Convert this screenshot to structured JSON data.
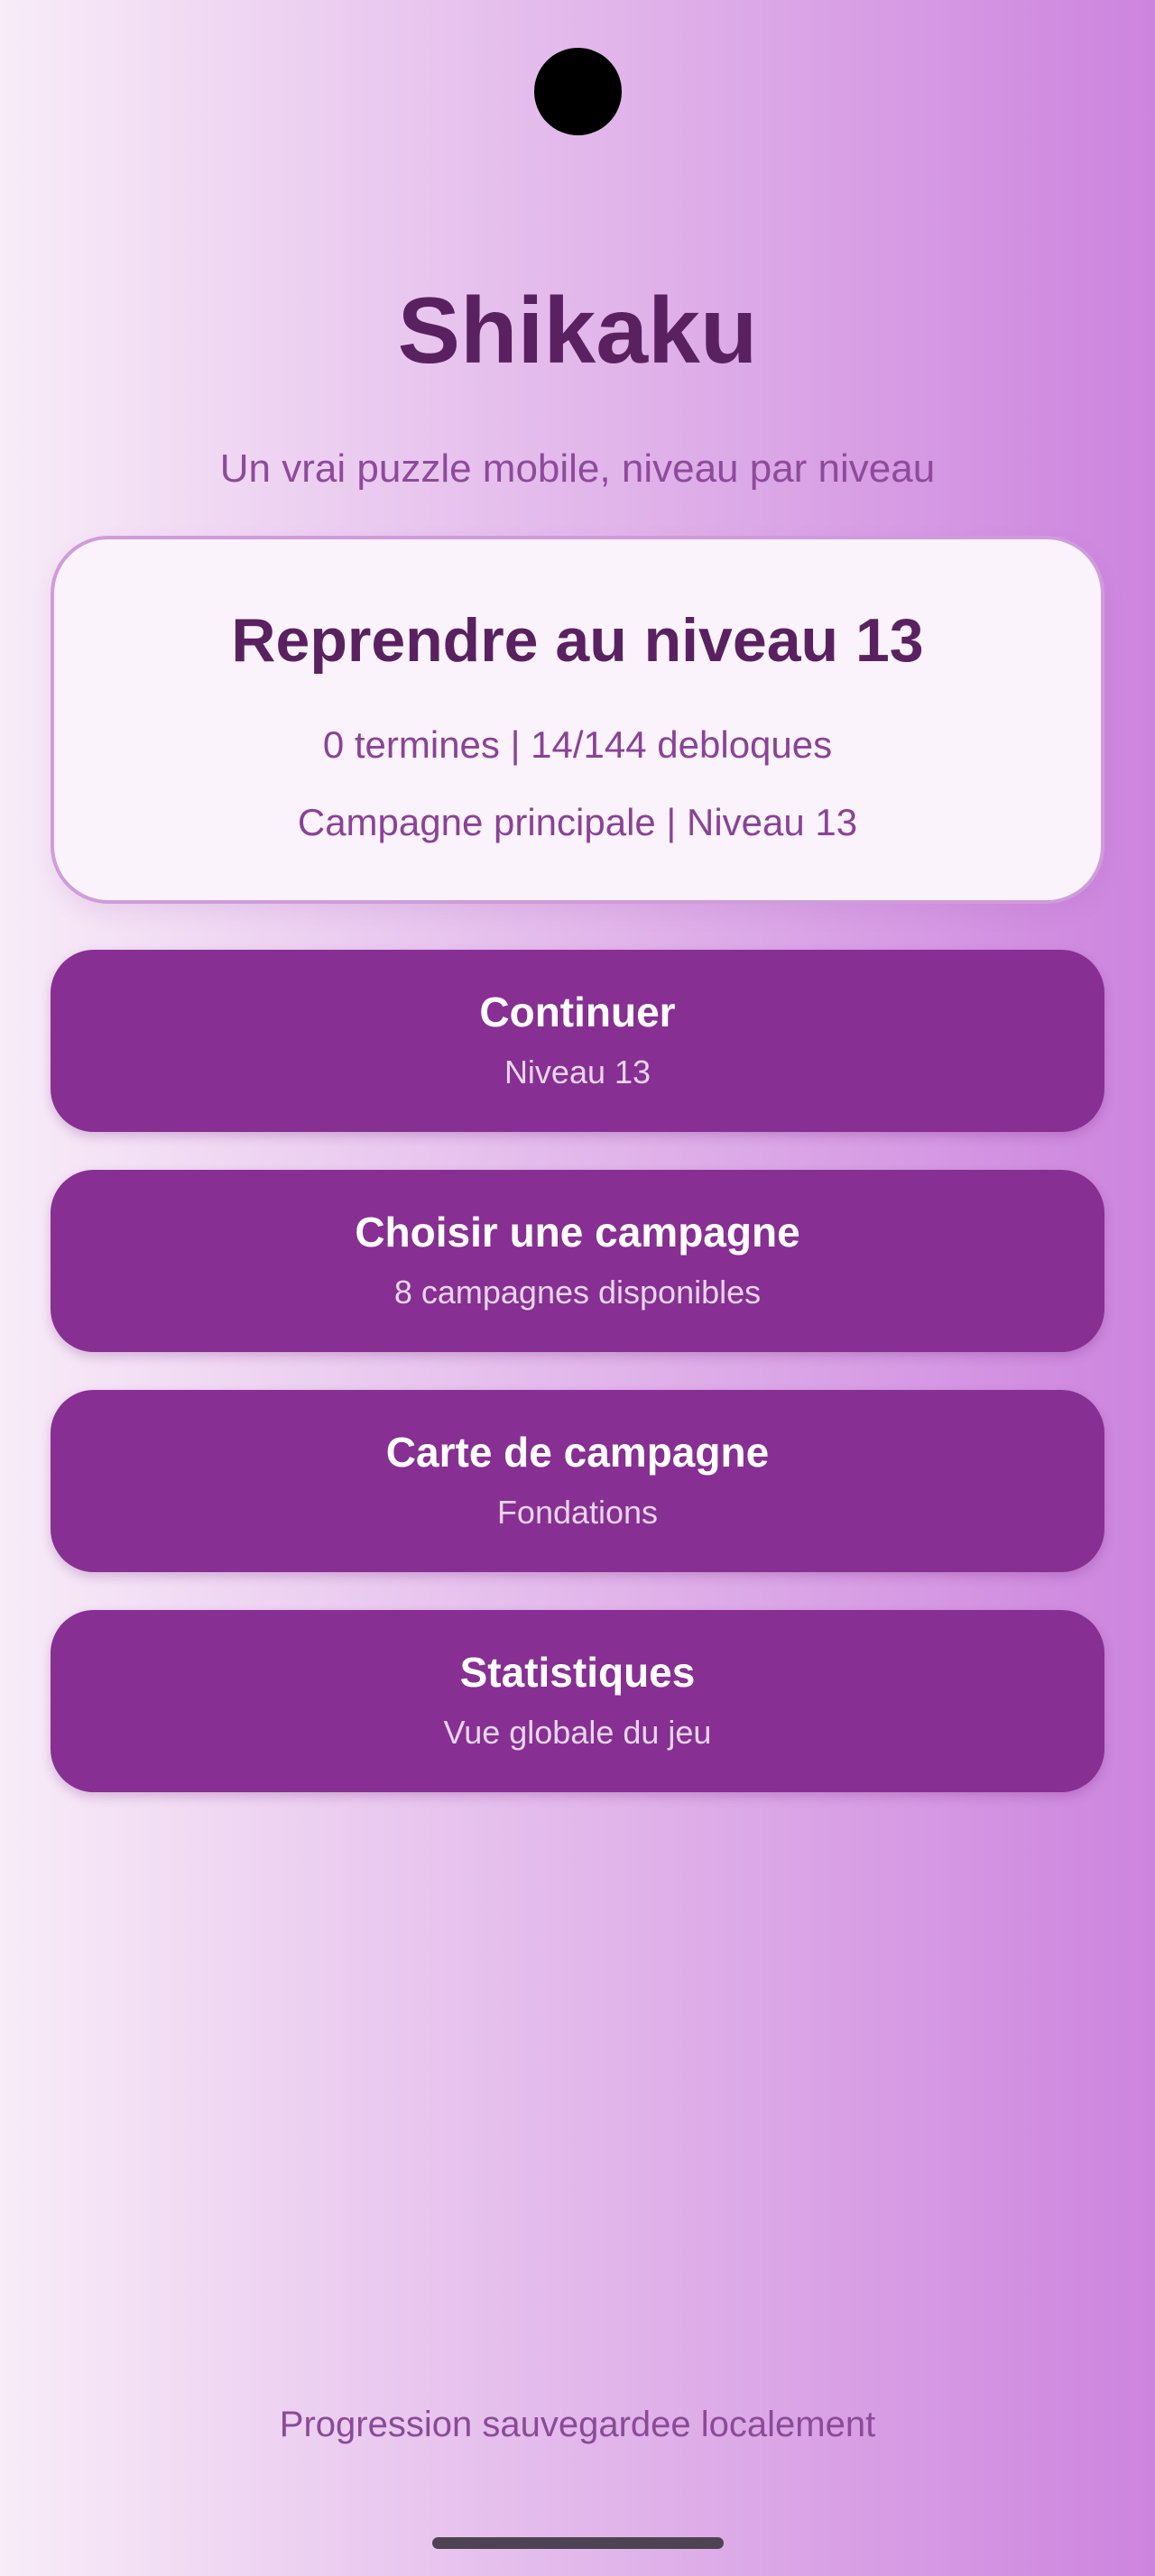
{
  "app": {
    "title": "Shikaku",
    "subtitle": "Un vrai puzzle mobile, niveau par niveau"
  },
  "resume_card": {
    "title": "Reprendre au niveau 13",
    "progress": "0 termines | 14/144 debloques",
    "location": "Campagne principale | Niveau 13"
  },
  "buttons": [
    {
      "label": "Continuer",
      "sublabel": "Niveau 13"
    },
    {
      "label": "Choisir une campagne",
      "sublabel": "8 campagnes disponibles"
    },
    {
      "label": "Carte de campagne",
      "sublabel": "Fondations"
    },
    {
      "label": "Statistiques",
      "sublabel": "Vue globale du jeu"
    }
  ],
  "footer": {
    "note": "Progression sauvegardee localement"
  },
  "colors": {
    "bg_left": "#f8ecf8",
    "bg_right": "#cd84de",
    "accent": "#872f92",
    "title": "#5a2161",
    "subtitle": "#8e4a9b",
    "meta": "#8a4296",
    "card_bg": "#faf3fb",
    "card_border": "#cf9cdb",
    "btn_sub": "#e7d6ec",
    "footer": "#8b4a98",
    "home_bar": "#4e4352"
  }
}
